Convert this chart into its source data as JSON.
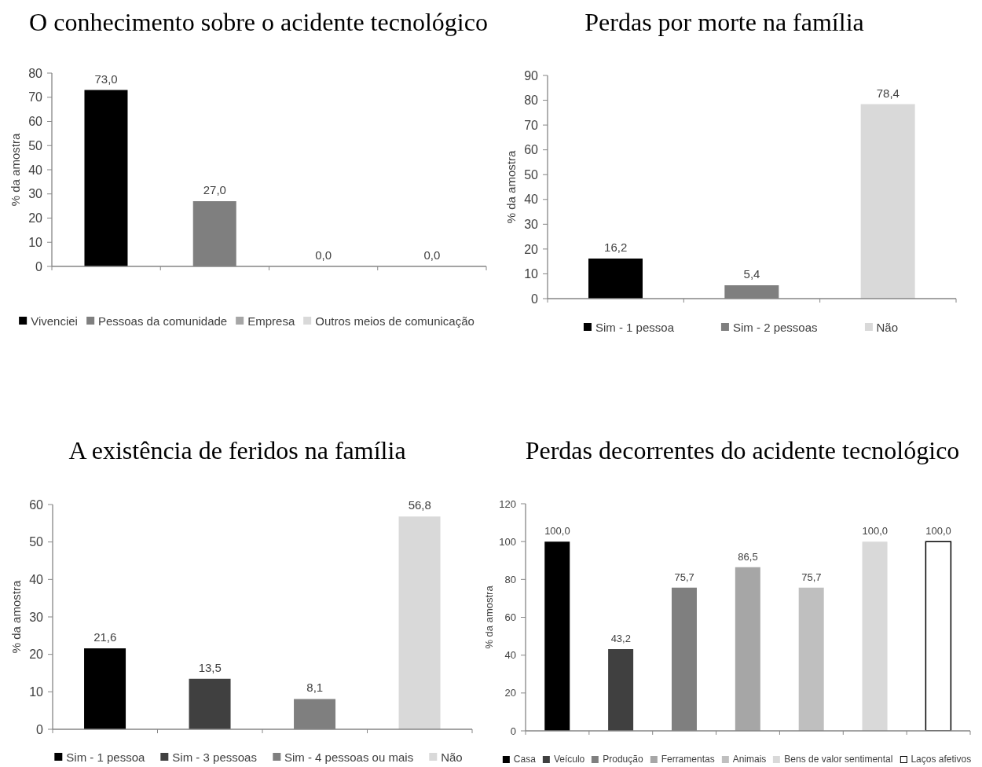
{
  "chart_data": [
    {
      "type": "bar",
      "title": "O conhecimento sobre o acidente tecnológico",
      "ylabel": "% da amostra",
      "categories": [
        null,
        null,
        null,
        null
      ],
      "series": [
        {
          "name": "Vivenciei",
          "color": "#000000",
          "values": [
            73.0,
            null,
            null,
            null
          ],
          "value_labels": [
            "73,0",
            null,
            null,
            null
          ]
        },
        {
          "name": "Pessoas da comunidade",
          "color": "#7f7f7f",
          "values": [
            null,
            27.0,
            null,
            null
          ],
          "value_labels": [
            null,
            "27,0",
            null,
            null
          ]
        },
        {
          "name": "Empresa",
          "color": "#a6a6a6",
          "values": [
            null,
            null,
            0.0,
            null
          ],
          "value_labels": [
            null,
            null,
            "0,0",
            null
          ]
        },
        {
          "name": "Outros meios de comunicação",
          "color": "#d9d9d9",
          "values": [
            null,
            null,
            null,
            0.0
          ],
          "value_labels": [
            null,
            null,
            null,
            "0,0"
          ]
        }
      ],
      "ylim": [
        0,
        80
      ],
      "yticks": [
        0,
        10,
        20,
        30,
        40,
        50,
        60,
        70,
        80
      ],
      "tick_labels": "y",
      "legend": "bottom"
    },
    {
      "type": "bar",
      "title": "Perdas por morte na família",
      "ylabel": "% da amostra",
      "categories": [
        null,
        null,
        null
      ],
      "series": [
        {
          "name": "Sim - 1 pessoa",
          "color": "#000000",
          "values": [
            16.2,
            null,
            null
          ],
          "value_labels": [
            "16,2",
            null,
            null
          ]
        },
        {
          "name": "Sim - 2 pessoas",
          "color": "#7f7f7f",
          "values": [
            null,
            5.4,
            null
          ],
          "value_labels": [
            null,
            "5,4",
            null
          ]
        },
        {
          "name": "Não",
          "color": "#d9d9d9",
          "values": [
            null,
            null,
            78.4
          ],
          "value_labels": [
            null,
            null,
            "78,4"
          ]
        }
      ],
      "ylim": [
        0,
        90
      ],
      "yticks": [
        0,
        10,
        20,
        30,
        40,
        50,
        60,
        70,
        80,
        90
      ],
      "tick_labels": "y",
      "legend": "bottom"
    },
    {
      "type": "bar",
      "title": "A existência de feridos na família",
      "ylabel": "% da amostra",
      "categories": [
        null,
        null,
        null,
        null
      ],
      "series": [
        {
          "name": "Sim - 1 pessoa",
          "color": "#000000",
          "values": [
            21.6,
            null,
            null,
            null
          ],
          "value_labels": [
            "21,6",
            null,
            null,
            null
          ]
        },
        {
          "name": "Sim - 3 pessoas",
          "color": "#404040",
          "values": [
            null,
            13.5,
            null,
            null
          ],
          "value_labels": [
            null,
            "13,5",
            null,
            null
          ]
        },
        {
          "name": "Sim - 4 pessoas ou mais",
          "color": "#7f7f7f",
          "values": [
            null,
            null,
            8.1,
            null
          ],
          "value_labels": [
            null,
            null,
            "8,1",
            null
          ]
        },
        {
          "name": "Não",
          "color": "#d9d9d9",
          "values": [
            null,
            null,
            null,
            56.8
          ],
          "value_labels": [
            null,
            null,
            null,
            "56,8"
          ]
        }
      ],
      "ylim": [
        0,
        60
      ],
      "yticks": [
        0,
        10,
        20,
        30,
        40,
        50,
        60
      ],
      "tick_labels": "y",
      "legend": "bottom"
    },
    {
      "type": "bar",
      "title": "Perdas decorrentes do acidente tecnológico",
      "ylabel": "% da amostra",
      "categories": [
        null,
        null,
        null,
        null,
        null,
        null,
        null
      ],
      "series": [
        {
          "name": "Casa",
          "color": "#000000",
          "values": [
            100.0,
            null,
            null,
            null,
            null,
            null,
            null
          ],
          "value_labels": [
            "100,0",
            null,
            null,
            null,
            null,
            null,
            null
          ]
        },
        {
          "name": "Veículo",
          "color": "#404040",
          "values": [
            null,
            43.2,
            null,
            null,
            null,
            null,
            null
          ],
          "value_labels": [
            null,
            "43,2",
            null,
            null,
            null,
            null,
            null
          ]
        },
        {
          "name": "Produção",
          "color": "#7f7f7f",
          "values": [
            null,
            null,
            75.7,
            null,
            null,
            null,
            null
          ],
          "value_labels": [
            null,
            null,
            "75,7",
            null,
            null,
            null,
            null
          ]
        },
        {
          "name": "Ferramentas",
          "color": "#a6a6a6",
          "values": [
            null,
            null,
            null,
            86.5,
            null,
            null,
            null
          ],
          "value_labels": [
            null,
            null,
            null,
            "86,5",
            null,
            null,
            null
          ]
        },
        {
          "name": "Animais",
          "color": "#bfbfbf",
          "values": [
            null,
            null,
            null,
            null,
            75.7,
            null,
            null
          ],
          "value_labels": [
            null,
            null,
            null,
            null,
            "75,7",
            null,
            null
          ]
        },
        {
          "name": "Bens de valor sentimental",
          "color": "#d9d9d9",
          "values": [
            null,
            null,
            null,
            null,
            null,
            100.0,
            null
          ],
          "value_labels": [
            null,
            null,
            null,
            null,
            null,
            "100,0",
            null
          ]
        },
        {
          "name": "Laços afetivos",
          "color": "#ffffff",
          "values": [
            null,
            null,
            null,
            null,
            null,
            null,
            100.0
          ],
          "value_labels": [
            null,
            null,
            null,
            null,
            null,
            null,
            "100,0"
          ]
        }
      ],
      "ylim": [
        0,
        120
      ],
      "yticks": [
        0,
        20,
        40,
        60,
        80,
        100,
        120
      ],
      "tick_labels": "y",
      "legend": "bottom"
    }
  ]
}
